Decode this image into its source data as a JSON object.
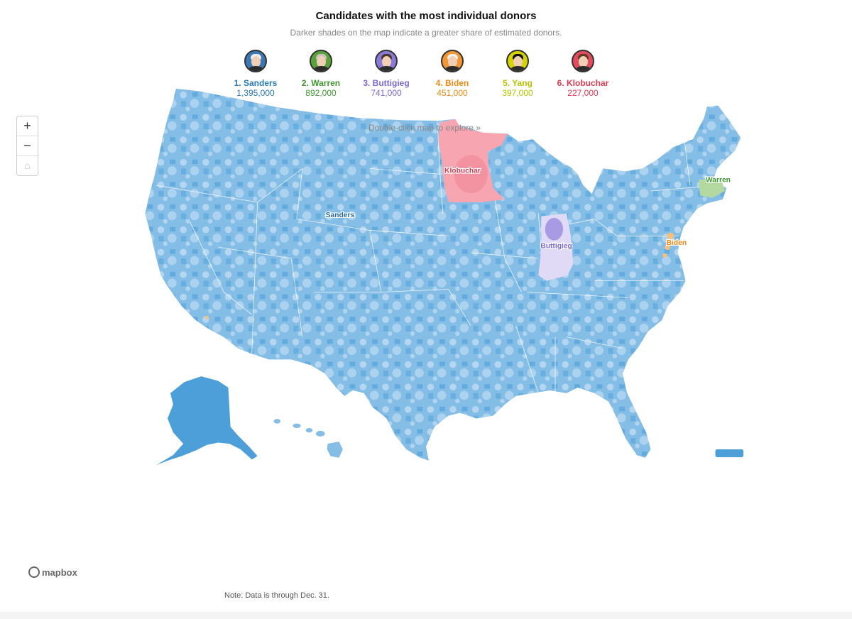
{
  "header": {
    "title": "Candidates with the most individual donors",
    "subtitle": "Darker shades on the map indicate a greater share of estimated donors."
  },
  "candidates": [
    {
      "rank_name": "1. Sanders",
      "count": "1,395,000",
      "color": "#2a79b7",
      "avatar_color": "#3a78b5",
      "hair": "#eeeeee"
    },
    {
      "rank_name": "2. Warren",
      "count": "892,000",
      "color": "#3f9a31",
      "avatar_color": "#5aa23b",
      "hair": "#c9c3bb"
    },
    {
      "rank_name": "3. Buttigieg",
      "count": "741,000",
      "color": "#7a6bd2",
      "avatar_color": "#8a7bd8",
      "hair": "#4a3628"
    },
    {
      "rank_name": "4. Biden",
      "count": "451,000",
      "color": "#ef8a17",
      "avatar_color": "#f29533",
      "hair": "#f2f2f2"
    },
    {
      "rank_name": "5. Yang",
      "count": "397,000",
      "color": "#b8c200",
      "avatar_color": "#d4d300",
      "hair": "#111111"
    },
    {
      "rank_name": "6. Klobuchar",
      "count": "227,000",
      "color": "#e03a53",
      "avatar_color": "#e34a5e",
      "hair": "#5b3b25"
    }
  ],
  "map": {
    "explore_hint": "Double-click map to explore »",
    "zoom_in": "+",
    "zoom_out": "−",
    "home_icon": "⌂",
    "note": "Note: Data is through Dec. 31.",
    "attribution": "mapbox",
    "labels": [
      {
        "text": "Klobuchar",
        "color": "#d6384f"
      },
      {
        "text": "Warren",
        "color": "#3f9a31"
      },
      {
        "text": "Sanders",
        "color": "#2569a3"
      },
      {
        "text": "Buttigieg",
        "color": "#7a6bd2"
      },
      {
        "text": "Biden",
        "color": "#ef8a17"
      }
    ],
    "colors": {
      "sanders_dark": "#4c9fd8",
      "sanders_mid": "#84bde6",
      "sanders_light": "#bcdaf1",
      "sanders_pale": "#dcebf8",
      "klobuchar": "#f6a5b1",
      "klobuchar_light": "#fbd0d7",
      "buttigieg": "#a99ae4",
      "buttigieg_light": "#e0daf6",
      "warren": "#b3d9a0",
      "biden": "#f9c07a"
    }
  }
}
